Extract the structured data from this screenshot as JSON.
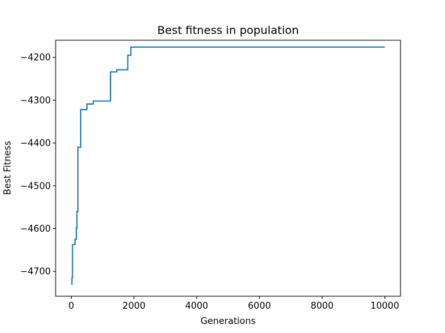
{
  "chart_data": {
    "type": "line",
    "title": "Best fitness in population",
    "xlabel": "Generations",
    "ylabel": "Best Fitness",
    "xlim": [
      -500,
      10500
    ],
    "ylim": [
      -4758,
      -4160
    ],
    "xticks": [
      0,
      2000,
      4000,
      6000,
      8000,
      10000
    ],
    "xtick_labels": [
      "0",
      "2000",
      "4000",
      "6000",
      "8000",
      "10000"
    ],
    "yticks": [
      -4700,
      -4600,
      -4500,
      -4400,
      -4300,
      -4200
    ],
    "ytick_labels": [
      "−4700",
      "−4600",
      "−4500",
      "−4400",
      "−4300",
      "−4200"
    ],
    "grid": false,
    "color": "#1f77b4",
    "step": true,
    "series": [
      {
        "x": [
          0,
          20,
          40,
          120,
          160,
          180,
          210,
          300,
          350,
          500,
          700,
          1250,
          1450,
          1800,
          1900,
          10000
        ],
        "y": [
          -4730,
          -4715,
          -4637,
          -4625,
          -4598,
          -4560,
          -4410,
          -4322,
          -4322,
          -4309,
          -4302,
          -4234,
          -4229,
          -4195,
          -4176,
          -4176
        ]
      }
    ]
  }
}
